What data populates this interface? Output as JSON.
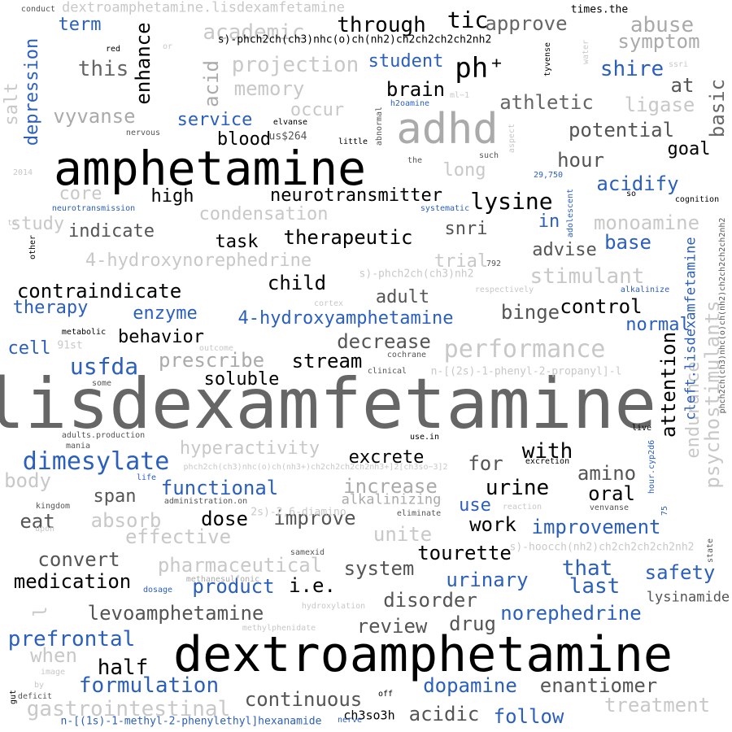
{
  "words": [
    {
      "id": "lisdexamfetamine-main",
      "text": "lisdexamfetamine",
      "color": "#666666"
    },
    {
      "id": "dextroamphetamine-main",
      "text": "dextroamphetamine",
      "color": "#000000"
    },
    {
      "id": "amphetamine",
      "text": "amphetamine",
      "color": "#000000"
    },
    {
      "id": "adhd",
      "text": "adhd",
      "color": "#aaaaaa"
    },
    {
      "id": "dextroamphetamine-lisdexamfetamine",
      "text": "dextroamphetamine.lisdexamfetamine",
      "color": "#c8c8c8"
    },
    {
      "id": "tic",
      "text": "tic",
      "color": "#000000"
    },
    {
      "id": "ph-plus",
      "text": "ph⁺",
      "color": "#000000"
    },
    {
      "id": "term",
      "text": "term",
      "color": "#2b5fbd"
    },
    {
      "id": "through",
      "text": "through",
      "color": "#000000"
    },
    {
      "id": "approve",
      "text": "approve",
      "color": "#666666"
    },
    {
      "id": "abuse",
      "text": "abuse",
      "color": "#aaaaaa"
    },
    {
      "id": "symptom",
      "text": "symptom",
      "color": "#aaaaaa"
    },
    {
      "id": "academic",
      "text": "academic",
      "color": "#c8c8c8"
    },
    {
      "id": "shire",
      "text": "shire",
      "color": "#2b5fbd"
    },
    {
      "id": "depression",
      "text": "depression",
      "color": "#2b5fbd"
    },
    {
      "id": "salt",
      "text": "salt",
      "color": "#c8c8c8"
    },
    {
      "id": "this",
      "text": "this",
      "color": "#666666"
    },
    {
      "id": "enhance",
      "text": "enhance",
      "color": "#000000"
    },
    {
      "id": "acid",
      "text": "acid",
      "color": "#aaaaaa"
    },
    {
      "id": "projection",
      "text": "projection",
      "color": "#c8c8c8"
    },
    {
      "id": "student",
      "text": "student",
      "color": "#2b5fbd"
    },
    {
      "id": "memory",
      "text": "memory",
      "color": "#c8c8c8"
    },
    {
      "id": "brain",
      "text": "brain",
      "color": "#000000"
    },
    {
      "id": "at",
      "text": "at",
      "color": "#555555"
    },
    {
      "id": "athletic",
      "text": "athletic",
      "color": "#666666"
    },
    {
      "id": "ligase",
      "text": "ligase",
      "color": "#c8c8c8"
    },
    {
      "id": "basic",
      "text": "basic",
      "color": "#666666"
    },
    {
      "id": "occur",
      "text": "occur",
      "color": "#c8c8c8"
    },
    {
      "id": "vyvanse",
      "text": "vyvanse",
      "color": "#aaaaaa"
    },
    {
      "id": "service",
      "text": "service",
      "color": "#2b5fbd"
    },
    {
      "id": "potential",
      "text": "potential",
      "color": "#555555"
    },
    {
      "id": "blood",
      "text": "blood",
      "color": "#000000"
    },
    {
      "id": "goal",
      "text": "goal",
      "color": "#000000"
    },
    {
      "id": "hour",
      "text": "hour",
      "color": "#555555"
    },
    {
      "id": "long",
      "text": "long",
      "color": "#c8c8c8"
    },
    {
      "id": "acidify",
      "text": "acidify",
      "color": "#2b5fbd"
    },
    {
      "id": "core",
      "text": "core",
      "color": "#c8c8c8"
    },
    {
      "id": "high",
      "text": "high",
      "color": "#000000"
    },
    {
      "id": "neurotransmitter",
      "text": "neurotransmitter",
      "color": "#000000"
    },
    {
      "id": "lysine",
      "text": "lysine",
      "color": "#000000"
    },
    {
      "id": "condensation",
      "text": "condensation",
      "color": "#c8c8c8"
    },
    {
      "id": "study",
      "text": "study",
      "color": "#c8c8c8"
    },
    {
      "id": "indicate",
      "text": "indicate",
      "color": "#555555"
    },
    {
      "id": "in",
      "text": "in",
      "color": "#2b5fbd"
    },
    {
      "id": "monoamine",
      "text": "monoamine",
      "color": "#c8c8c8"
    },
    {
      "id": "snri",
      "text": "snri",
      "color": "#555555"
    },
    {
      "id": "base",
      "text": "base",
      "color": "#2b5fbd"
    },
    {
      "id": "task",
      "text": "task",
      "color": "#000000"
    },
    {
      "id": "therapeutic",
      "text": "therapeutic",
      "color": "#000000"
    },
    {
      "id": "advise",
      "text": "advise",
      "color": "#555555"
    },
    {
      "id": "4-hydroxynorephedrine",
      "text": "4-hydroxynorephedrine",
      "color": "#c8c8c8"
    },
    {
      "id": "trial",
      "text": "trial",
      "color": "#c8c8c8"
    },
    {
      "id": "stimulant",
      "text": "stimulant",
      "color": "#c8c8c8"
    },
    {
      "id": "child",
      "text": "child",
      "color": "#000000"
    },
    {
      "id": "contraindicate",
      "text": "contraindicate",
      "color": "#000000"
    },
    {
      "id": "adult",
      "text": "adult",
      "color": "#555555"
    },
    {
      "id": "therapy",
      "text": "therapy",
      "color": "#2b5fbd"
    },
    {
      "id": "enzyme",
      "text": "enzyme",
      "color": "#2b5fbd"
    },
    {
      "id": "4-hydroxyamphetamine",
      "text": "4-hydroxyamphetamine",
      "color": "#2b5fbd"
    },
    {
      "id": "binge",
      "text": "binge",
      "color": "#555555"
    },
    {
      "id": "control",
      "text": "control",
      "color": "#000000"
    },
    {
      "id": "normal",
      "text": "normal",
      "color": "#2b5fbd"
    },
    {
      "id": "behavior",
      "text": "behavior",
      "color": "#000000"
    },
    {
      "id": "decrease",
      "text": "decrease",
      "color": "#555555"
    },
    {
      "id": "performance",
      "text": "performance",
      "color": "#c8c8c8"
    },
    {
      "id": "cell",
      "text": "cell",
      "color": "#2b5fbd"
    },
    {
      "id": "usfda",
      "text": "usfda",
      "color": "#2b5fbd"
    },
    {
      "id": "prescribe",
      "text": "prescribe",
      "color": "#aaaaaa"
    },
    {
      "id": "stream",
      "text": "stream",
      "color": "#000000"
    },
    {
      "id": "soluble",
      "text": "soluble",
      "color": "#000000"
    },
    {
      "id": "attention",
      "text": "attention",
      "color": "#000000"
    },
    {
      "id": "endurance",
      "text": "endurance",
      "color": "#c8c8c8"
    },
    {
      "id": "psychostimulants",
      "text": "psychostimulants",
      "color": "#c8c8c8"
    },
    {
      "id": "cleft-lisdexamfetamine",
      "text": "cleft.lisdexamfetamine",
      "color": "#2b5fbd"
    },
    {
      "id": "hyperactivity",
      "text": "hyperactivity",
      "color": "#c8c8c8"
    },
    {
      "id": "dimesylate",
      "text": "dimesylate",
      "color": "#2b5fbd"
    },
    {
      "id": "excrete",
      "text": "excrete",
      "color": "#000000"
    },
    {
      "id": "with",
      "text": "with",
      "color": "#000000"
    },
    {
      "id": "for",
      "text": "for",
      "color": "#555555"
    },
    {
      "id": "amino",
      "text": "amino",
      "color": "#555555"
    },
    {
      "id": "body",
      "text": "body",
      "color": "#c8c8c8"
    },
    {
      "id": "functional",
      "text": "functional",
      "color": "#2b5fbd"
    },
    {
      "id": "increase",
      "text": "increase",
      "color": "#aaaaaa"
    },
    {
      "id": "urine",
      "text": "urine",
      "color": "#000000"
    },
    {
      "id": "oral",
      "text": "oral",
      "color": "#000000"
    },
    {
      "id": "span",
      "text": "span",
      "color": "#555555"
    },
    {
      "id": "alkalinizing",
      "text": "alkalinizing",
      "color": "#aaaaaa"
    },
    {
      "id": "use",
      "text": "use",
      "color": "#2b5fbd"
    },
    {
      "id": "work",
      "text": "work",
      "color": "#000000"
    },
    {
      "id": "improvement",
      "text": "improvement",
      "color": "#2b5fbd"
    },
    {
      "id": "eat",
      "text": "eat",
      "color": "#555555"
    },
    {
      "id": "absorb",
      "text": "absorb",
      "color": "#c8c8c8"
    },
    {
      "id": "dose",
      "text": "dose",
      "color": "#000000"
    },
    {
      "id": "improve",
      "text": "improve",
      "color": "#555555"
    },
    {
      "id": "effective",
      "text": "effective",
      "color": "#c8c8c8"
    },
    {
      "id": "unite",
      "text": "unite",
      "color": "#c8c8c8"
    },
    {
      "id": "convert",
      "text": "convert",
      "color": "#555555"
    },
    {
      "id": "pharmaceutical",
      "text": "pharmaceutical",
      "color": "#c8c8c8"
    },
    {
      "id": "system",
      "text": "system",
      "color": "#555555"
    },
    {
      "id": "tourette",
      "text": "tourette",
      "color": "#000000"
    },
    {
      "id": "that",
      "text": "that",
      "color": "#2b5fbd"
    },
    {
      "id": "safety",
      "text": "safety",
      "color": "#2b5fbd"
    },
    {
      "id": "medication",
      "text": "medication",
      "color": "#000000"
    },
    {
      "id": "product",
      "text": "product",
      "color": "#2b5fbd"
    },
    {
      "id": "i-e",
      "text": "i.e.",
      "color": "#000000"
    },
    {
      "id": "urinary",
      "text": "urinary",
      "color": "#2b5fbd"
    },
    {
      "id": "last",
      "text": "last",
      "color": "#2b5fbd"
    },
    {
      "id": "disorder",
      "text": "disorder",
      "color": "#555555"
    },
    {
      "id": "levoamphetamine",
      "text": "levoamphetamine",
      "color": "#555555"
    },
    {
      "id": "norephedrine",
      "text": "norephedrine",
      "color": "#2b5fbd"
    },
    {
      "id": "lysinamide",
      "text": "lysinamide",
      "color": "#555555"
    },
    {
      "id": "review",
      "text": "review",
      "color": "#555555"
    },
    {
      "id": "drug",
      "text": "drug",
      "color": "#555555"
    },
    {
      "id": "prefrontal",
      "text": "prefrontal",
      "color": "#2b5fbd"
    },
    {
      "id": "when",
      "text": "when",
      "color": "#c8c8c8"
    },
    {
      "id": "half",
      "text": "half",
      "color": "#000000"
    },
    {
      "id": "formulation",
      "text": "formulation",
      "color": "#2b5fbd"
    },
    {
      "id": "dopamine",
      "text": "dopamine",
      "color": "#2b5fbd"
    },
    {
      "id": "enantiomer",
      "text": "enantiomer",
      "color": "#555555"
    },
    {
      "id": "treatment",
      "text": "treatment",
      "color": "#c8c8c8"
    },
    {
      "id": "gastrointestinal",
      "text": "gastrointestinal",
      "color": "#c8c8c8"
    },
    {
      "id": "continuous",
      "text": "continuous",
      "color": "#555555"
    },
    {
      "id": "acidic",
      "text": "acidic",
      "color": "#555555"
    },
    {
      "id": "follow",
      "text": "follow",
      "color": "#2b5fbd"
    },
    {
      "id": "hexanamide",
      "text": "n-[(1s)-1-methyl-2-phenylethyl]hexanamide",
      "color": "#2b5fbd"
    },
    {
      "id": "ch3so3h",
      "text": "ch3so3h",
      "color": "#000000"
    },
    {
      "id": "nerve",
      "text": "nerve",
      "color": "#2b5fbd"
    },
    {
      "id": "formula-top",
      "text": "s)-phch2ch(ch3)nhc(o)ch(nh2)ch2ch2ch2ch2nh2",
      "color": "#000000"
    },
    {
      "id": "formula-trial",
      "text": "s)-phch2ch(ch3)nh2",
      "color": "#c8c8c8"
    },
    {
      "id": "formula-propanyl",
      "text": "n-[(2s)-1-phenyl-2-propanyl]-l",
      "color": "#c8c8c8"
    },
    {
      "id": "formula-diamino",
      "text": "2s)-2,6-diamino",
      "color": "#c8c8c8"
    },
    {
      "id": "formula-hooc",
      "text": "s)-hoocch(nh2)ch2ch2ch2ch2nh2",
      "color": "#c8c8c8"
    },
    {
      "id": "formula-nh3",
      "text": "phch2ch(ch3)nhc(o)ch(nh3+)ch2ch2ch2ch2nh3+]2[ch3so−3]2",
      "color": "#c8c8c8"
    },
    {
      "id": "formula-vertical",
      "text": "phch2ch(ch3)nhc(o)ch(nh2)ch2ch2ch2ch2nh2",
      "color": "#555555"
    },
    {
      "id": "conduct",
      "text": "conduct",
      "color": "#555555"
    },
    {
      "id": "red",
      "text": "red",
      "color": "#000000"
    },
    {
      "id": "or",
      "text": "or",
      "color": "#c8c8c8"
    },
    {
      "id": "tyvense",
      "text": "tyvense",
      "color": "#000000"
    },
    {
      "id": "water",
      "text": "water",
      "color": "#c8c8c8"
    },
    {
      "id": "times-the",
      "text": "times.the",
      "color": "#000000"
    },
    {
      "id": "ssri",
      "text": "ssri",
      "color": "#c8c8c8"
    },
    {
      "id": "h2oamine",
      "text": "h2oamine",
      "color": "#2b5fbd"
    },
    {
      "id": "ml-1",
      "text": "ml−1",
      "color": "#c8c8c8"
    },
    {
      "id": "abnormal",
      "text": "abnormal",
      "color": "#555555"
    },
    {
      "id": "elvanse",
      "text": "elvanse",
      "color": "#000000"
    },
    {
      "id": "us264",
      "text": "us$264",
      "color": "#555555"
    },
    {
      "id": "nervous",
      "text": "nervous",
      "color": "#555555"
    },
    {
      "id": "little",
      "text": "little",
      "color": "#000000"
    },
    {
      "id": "the",
      "text": "the",
      "color": "#555555"
    },
    {
      "id": "such",
      "text": "such",
      "color": "#555555"
    },
    {
      "id": "aspect",
      "text": "aspect",
      "color": "#c8c8c8"
    },
    {
      "id": "2014",
      "text": "2014",
      "color": "#c8c8c8"
    },
    {
      "id": "29750",
      "text": "29,750",
      "color": "#2b5fbd"
    },
    {
      "id": "so",
      "text": "so",
      "color": "#000000"
    },
    {
      "id": "adolescent",
      "text": "adolescent",
      "color": "#2b5fbd"
    },
    {
      "id": "cognition",
      "text": "cognition",
      "color": "#000000"
    },
    {
      "id": "neurotransmission",
      "text": "neurotransmission",
      "color": "#2b5fbd"
    },
    {
      "id": "systematic",
      "text": "systematic",
      "color": "#2b5fbd"
    },
    {
      "id": "to",
      "text": "to",
      "color": "#c8c8c8"
    },
    {
      "id": "other",
      "text": "other",
      "color": "#000000"
    },
    {
      "id": "792",
      "text": "792",
      "color": "#555555"
    },
    {
      "id": "respectively",
      "text": "respectively",
      "color": "#c8c8c8"
    },
    {
      "id": "alkalinize",
      "text": "alkalinize",
      "color": "#2b5fbd"
    },
    {
      "id": "cortex",
      "text": "cortex",
      "color": "#c8c8c8"
    },
    {
      "id": "metabolic",
      "text": "metabolic",
      "color": "#000000"
    },
    {
      "id": "91st",
      "text": "91st",
      "color": "#c8c8c8"
    },
    {
      "id": "cochrane",
      "text": "cochrane",
      "color": "#555555"
    },
    {
      "id": "clinical",
      "text": "clinical",
      "color": "#555555"
    },
    {
      "id": "some",
      "text": "some",
      "color": "#555555"
    },
    {
      "id": "live",
      "text": "live",
      "color": "#000000"
    },
    {
      "id": "adults-production",
      "text": "adults.production",
      "color": "#555555"
    },
    {
      "id": "use-in",
      "text": "use.in",
      "color": "#000000"
    },
    {
      "id": "mania",
      "text": "mania",
      "color": "#555555"
    },
    {
      "id": "excretion",
      "text": "excretion",
      "color": "#000000"
    },
    {
      "id": "hour-cyp2d6",
      "text": "hour.cyp2d6",
      "color": "#2b5fbd"
    },
    {
      "id": "life",
      "text": "life",
      "color": "#2b5fbd"
    },
    {
      "id": "kingdom",
      "text": "kingdom",
      "color": "#555555"
    },
    {
      "id": "administration-on",
      "text": "administration.on",
      "color": "#555555"
    },
    {
      "id": "reaction",
      "text": "reaction",
      "color": "#c8c8c8"
    },
    {
      "id": "venvanse",
      "text": "venvanse",
      "color": "#555555"
    },
    {
      "id": "75",
      "text": "75",
      "color": "#2b5fbd"
    },
    {
      "id": "eliminate",
      "text": "eliminate",
      "color": "#555555"
    },
    {
      "id": "upon",
      "text": "upon",
      "color": "#c8c8c8"
    },
    {
      "id": "samexid",
      "text": "samexid",
      "color": "#555555"
    },
    {
      "id": "methanesulfonic",
      "text": "methanesulfonic",
      "color": "#aaaaaa"
    },
    {
      "id": "state",
      "text": "state",
      "color": "#555555"
    },
    {
      "id": "dosage",
      "text": "dosage",
      "color": "#2b5fbd"
    },
    {
      "id": "hydroxylation",
      "text": "hydroxylation",
      "color": "#c8c8c8"
    },
    {
      "id": "methylphenidate",
      "text": "methylphenidate",
      "color": "#c8c8c8"
    },
    {
      "id": "l",
      "text": "l",
      "color": "#c8c8c8"
    },
    {
      "id": "image",
      "text": "image",
      "color": "#c8c8c8"
    },
    {
      "id": "by",
      "text": "by",
      "color": "#c8c8c8"
    },
    {
      "id": "gut",
      "text": "gut",
      "color": "#000000"
    },
    {
      "id": "deficit",
      "text": "deficit",
      "color": "#555555"
    },
    {
      "id": "off",
      "text": "off",
      "color": "#000000"
    },
    {
      "id": "outcome",
      "text": "outcome",
      "color": "#c8c8c8"
    }
  ]
}
